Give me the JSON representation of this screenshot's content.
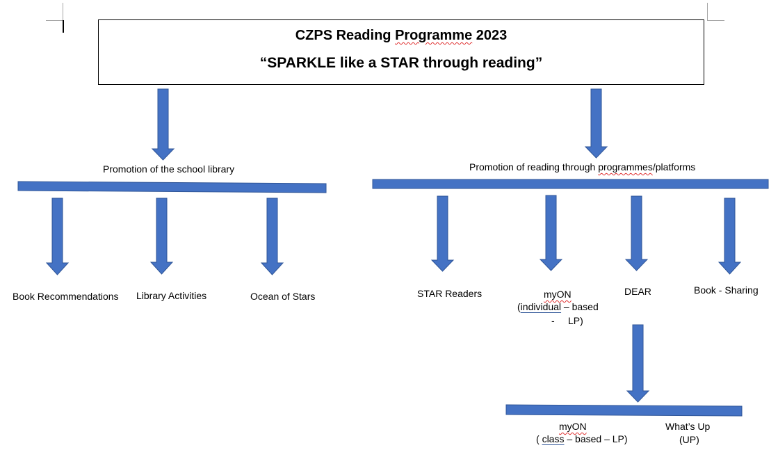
{
  "title": {
    "line1_prefix": "CZPS Reading ",
    "line1_flagged": "Programme",
    "line1_suffix": " 2023",
    "line2": "“SPARKLE like a STAR through reading”"
  },
  "left_branch": {
    "heading": "Promotion of the school library",
    "items": [
      "Book Recommendations",
      "Library Activities",
      "Ocean of Stars"
    ]
  },
  "right_branch": {
    "heading_prefix": "Promotion of reading through ",
    "heading_flagged": "programmes",
    "heading_suffix": "/platforms",
    "items": {
      "star_readers": "STAR Readers",
      "myon_title": "myON",
      "myon_paren_open": "(",
      "myon_individual": "individual",
      "myon_based": " – based",
      "myon_dash": "-",
      "myon_lp": "LP)",
      "dear": "DEAR",
      "book_sharing": "Book - Sharing"
    }
  },
  "sub_branch": {
    "myon_title": "myON",
    "myon_class_open": "( ",
    "myon_class": "class",
    "myon_class_rest": " – based – LP)",
    "whats_up_line1": "What’s Up",
    "whats_up_line2": "(UP)"
  },
  "colors": {
    "shape_fill": "#4472c4",
    "shape_stroke": "#2f5597",
    "spellcheck": "#e03030"
  }
}
